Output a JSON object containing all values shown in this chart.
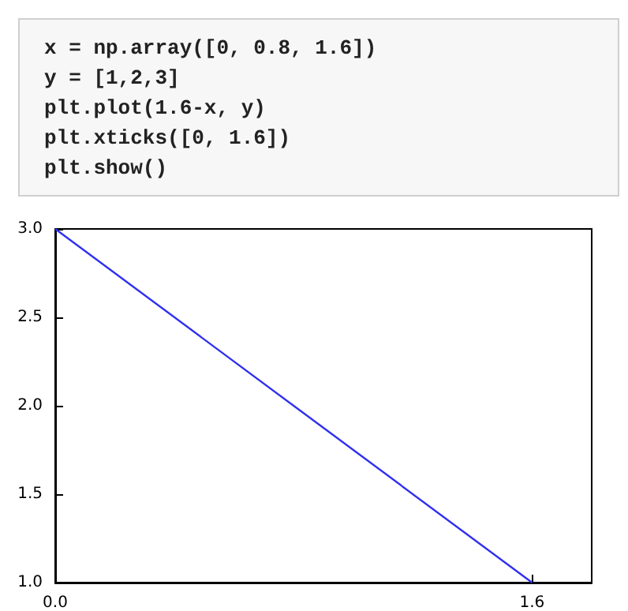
{
  "chart_data": {
    "type": "line",
    "annotations": [
      "x = np.array([0, 0.8, 1.6])",
      "y = [1,2,3]",
      "plt.plot(1.6-x, y)",
      "plt.xticks([0, 1.6])",
      "plt.show()"
    ],
    "x": [
      1.6,
      0.8,
      0
    ],
    "series": [
      {
        "color": "#3030f0",
        "values": [
          1,
          2,
          3
        ]
      }
    ],
    "xlim": [
      0,
      1.8
    ],
    "xticks": [
      {
        "value": 0,
        "label": "0.0"
      },
      {
        "value": 1.6,
        "label": "1.6"
      }
    ],
    "ylim": [
      1,
      3
    ],
    "yticks": [
      {
        "value": 1,
        "label": "1.0"
      },
      {
        "value": 1.5,
        "label": "1.5"
      },
      {
        "value": 2,
        "label": "2.0"
      },
      {
        "value": 2.5,
        "label": "2.5"
      },
      {
        "value": 3,
        "label": "3.0"
      }
    ],
    "grid": false,
    "marker": "none",
    "line_style": "solid"
  }
}
